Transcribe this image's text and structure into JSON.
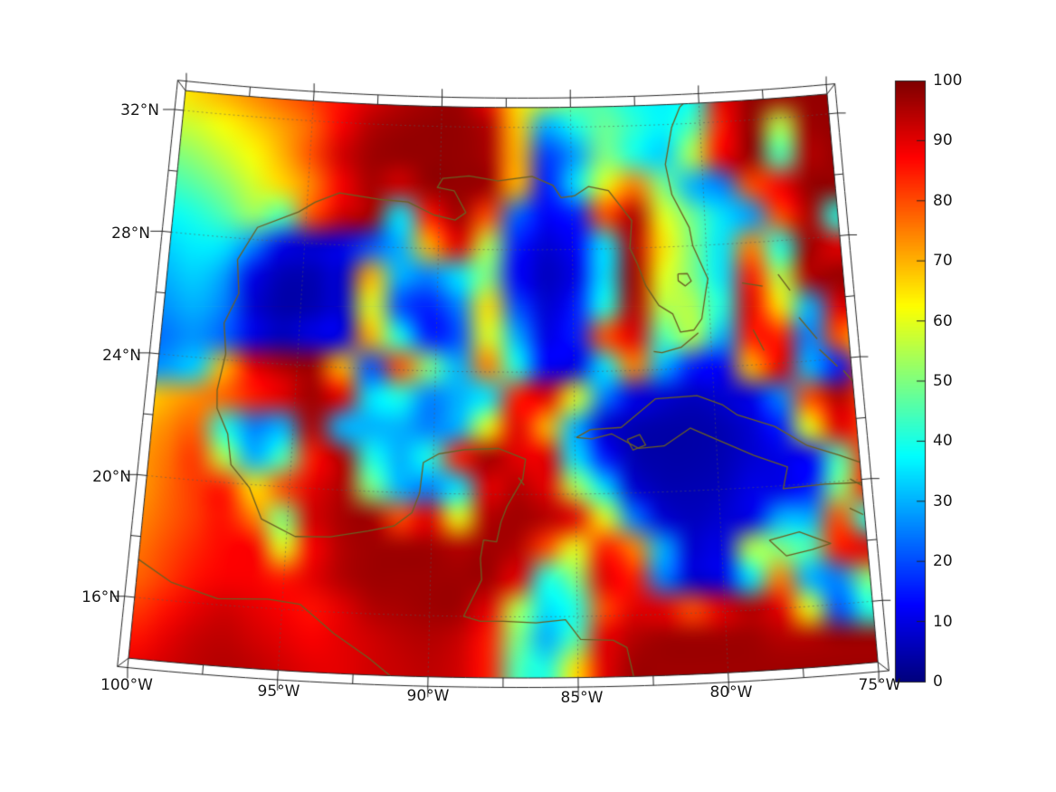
{
  "figure": {
    "background": "#ffffff",
    "description": "Geographic heatmap of Gulf of Mexico / Caribbean on a conic projection with jet colorbar 0-100"
  },
  "axes": {
    "x_tick_labels": [
      "100°W",
      "95°W",
      "90°W",
      "85°W",
      "80°W",
      "75°W"
    ],
    "y_tick_labels": [
      "32°N",
      "28°N",
      "24°N",
      "20°N",
      "16°N"
    ]
  },
  "colorbar": {
    "tick_labels": [
      "100",
      "90",
      "80",
      "70",
      "60",
      "50",
      "40",
      "30",
      "20",
      "10",
      "0"
    ],
    "min": 0,
    "max": 100,
    "colormap": "jet"
  },
  "chart_data": {
    "type": "heatmap",
    "title": "",
    "projection": "conic (Lambert-conformal-like), central meridian ~86.8W, apex above map",
    "lon_range": [
      -100,
      -75
    ],
    "lat_range": [
      14,
      32.65
    ],
    "x_ticks_deg": [
      -100,
      -95,
      -90,
      -85,
      -80,
      -75
    ],
    "y_ticks_deg": [
      32,
      28,
      24,
      20,
      16
    ],
    "gridline_lons": [
      -95,
      -90,
      -85,
      -80
    ],
    "gridline_lats": [
      16,
      20,
      24,
      28,
      32
    ],
    "colorbar_range": [
      0,
      100
    ],
    "colormap": "jet",
    "legend_position": "right",
    "grid": {
      "ncols": 26,
      "nrows": 20,
      "comment": "values 0-100 sampled on regular grid over plot area, row 0 = north/top",
      "values": [
        [
          60,
          62,
          66,
          70,
          74,
          78,
          82,
          86,
          90,
          94,
          96,
          97,
          86,
          65,
          60,
          50,
          44,
          38,
          36,
          38,
          90,
          98,
          97,
          98,
          98,
          98
        ],
        [
          55,
          56,
          58,
          62,
          67,
          72,
          78,
          88,
          95,
          97,
          98,
          98,
          95,
          68,
          30,
          40,
          48,
          42,
          37,
          45,
          85,
          98,
          55,
          97,
          98,
          98
        ],
        [
          47,
          49,
          52,
          57,
          62,
          70,
          80,
          92,
          97,
          98,
          98,
          98,
          96,
          70,
          18,
          28,
          50,
          40,
          33,
          55,
          88,
          98,
          45,
          95,
          98,
          98
        ],
        [
          41,
          43,
          46,
          51,
          58,
          66,
          75,
          88,
          96,
          92,
          98,
          98,
          97,
          70,
          15,
          35,
          60,
          75,
          50,
          30,
          25,
          80,
          88,
          98,
          98,
          98
        ],
        [
          35,
          37,
          40,
          45,
          52,
          45,
          80,
          92,
          96,
          35,
          85,
          97,
          80,
          22,
          12,
          15,
          80,
          95,
          60,
          48,
          35,
          28,
          80,
          95,
          40,
          98
        ],
        [
          31,
          33,
          36,
          35,
          25,
          10,
          8,
          10,
          20,
          30,
          70,
          90,
          55,
          15,
          8,
          12,
          35,
          95,
          65,
          50,
          35,
          75,
          40,
          97,
          90,
          98
        ],
        [
          28,
          30,
          33,
          28,
          10,
          5,
          5,
          8,
          70,
          30,
          25,
          35,
          50,
          12,
          6,
          10,
          35,
          97,
          60,
          50,
          35,
          85,
          55,
          95,
          98,
          98
        ],
        [
          25,
          27,
          30,
          25,
          8,
          4,
          5,
          8,
          60,
          20,
          15,
          25,
          65,
          20,
          8,
          15,
          40,
          95,
          55,
          55,
          40,
          90,
          65,
          30,
          90,
          95
        ],
        [
          22,
          24,
          27,
          22,
          10,
          6,
          10,
          10,
          70,
          40,
          15,
          20,
          60,
          30,
          10,
          15,
          80,
          90,
          45,
          55,
          30,
          85,
          85,
          25,
          80,
          60
        ],
        [
          25,
          28,
          33,
          70,
          90,
          95,
          97,
          70,
          20,
          80,
          50,
          30,
          75,
          40,
          12,
          10,
          35,
          75,
          30,
          15,
          12,
          70,
          90,
          30,
          15,
          80
        ],
        [
          65,
          70,
          74,
          78,
          85,
          90,
          97,
          90,
          35,
          40,
          25,
          30,
          35,
          85,
          90,
          60,
          25,
          10,
          8,
          6,
          8,
          10,
          25,
          80,
          95,
          80
        ],
        [
          70,
          74,
          78,
          40,
          25,
          30,
          95,
          30,
          30,
          30,
          25,
          30,
          60,
          90,
          70,
          30,
          8,
          5,
          4,
          4,
          5,
          8,
          15,
          60,
          90,
          80
        ],
        [
          72,
          76,
          82,
          55,
          30,
          45,
          85,
          95,
          40,
          30,
          40,
          85,
          97,
          90,
          90,
          35,
          15,
          5,
          4,
          4,
          5,
          8,
          10,
          12,
          45,
          85
        ],
        [
          72,
          77,
          82,
          85,
          65,
          80,
          90,
          95,
          50,
          30,
          25,
          35,
          90,
          95,
          90,
          55,
          35,
          8,
          5,
          5,
          6,
          10,
          10,
          15,
          50,
          85
        ],
        [
          74,
          78,
          82,
          86,
          75,
          50,
          92,
          96,
          97,
          80,
          90,
          60,
          95,
          97,
          95,
          90,
          60,
          25,
          8,
          6,
          8,
          10,
          30,
          30,
          80,
          40
        ],
        [
          76,
          80,
          84,
          87,
          88,
          60,
          88,
          95,
          97,
          97,
          97,
          95,
          97,
          95,
          80,
          60,
          85,
          75,
          30,
          8,
          10,
          55,
          50,
          45,
          85,
          90
        ],
        [
          78,
          82,
          86,
          88,
          88,
          85,
          90,
          95,
          97,
          97,
          97,
          97,
          97,
          90,
          40,
          50,
          90,
          85,
          25,
          8,
          10,
          35,
          75,
          30,
          25,
          50
        ],
        [
          82,
          86,
          90,
          92,
          90,
          88,
          86,
          90,
          95,
          96,
          97,
          97,
          90,
          55,
          35,
          40,
          80,
          90,
          90,
          80,
          90,
          95,
          90,
          60,
          20,
          40
        ],
        [
          86,
          90,
          93,
          94,
          92,
          90,
          88,
          90,
          92,
          94,
          95,
          93,
          85,
          50,
          30,
          45,
          90,
          95,
          97,
          97,
          97,
          97,
          95,
          95,
          97,
          97
        ],
        [
          90,
          92,
          94,
          95,
          94,
          92,
          90,
          90,
          92,
          93,
          94,
          92,
          85,
          45,
          40,
          65,
          90,
          97,
          97,
          97,
          97,
          97,
          97,
          97,
          97,
          97
        ]
      ]
    },
    "coastlines": [
      {
        "name": "us-gulf-and-atlantic-coast",
        "points": [
          [
            -97.6,
            24.2
          ],
          [
            -97.75,
            25.2
          ],
          [
            -97.3,
            26.2
          ],
          [
            -97.45,
            27.3
          ],
          [
            -96.8,
            28.4
          ],
          [
            -95.3,
            29.0
          ],
          [
            -94.7,
            29.35
          ],
          [
            -93.8,
            29.7
          ],
          [
            -92.3,
            29.55
          ],
          [
            -91.2,
            29.5
          ],
          [
            -90.2,
            29.1
          ],
          [
            -89.4,
            28.95
          ],
          [
            -89.0,
            29.2
          ],
          [
            -89.45,
            29.9
          ],
          [
            -90.1,
            30.0
          ],
          [
            -89.9,
            30.3
          ],
          [
            -88.9,
            30.4
          ],
          [
            -87.8,
            30.25
          ],
          [
            -86.5,
            30.4
          ],
          [
            -85.7,
            30.1
          ],
          [
            -85.4,
            29.7
          ],
          [
            -84.9,
            29.75
          ],
          [
            -84.35,
            30.05
          ],
          [
            -83.6,
            29.9
          ],
          [
            -83.0,
            29.2
          ],
          [
            -82.75,
            28.9
          ],
          [
            -82.85,
            28.0
          ],
          [
            -82.6,
            27.5
          ],
          [
            -82.3,
            26.75
          ],
          [
            -81.85,
            26.1
          ],
          [
            -81.35,
            25.8
          ],
          [
            -81.1,
            25.2
          ],
          [
            -80.6,
            25.25
          ],
          [
            -80.3,
            25.6
          ],
          [
            -80.1,
            26.5
          ],
          [
            -80.0,
            26.9
          ],
          [
            -80.5,
            28.0
          ],
          [
            -80.6,
            28.6
          ],
          [
            -81.2,
            29.7
          ],
          [
            -81.4,
            30.7
          ],
          [
            -81.1,
            31.9
          ],
          [
            -80.75,
            32.55
          ],
          [
            -80.6,
            32.66
          ]
        ]
      },
      {
        "name": "mexico-yucatan-honduras-coast",
        "points": [
          [
            -97.6,
            24.2
          ],
          [
            -97.8,
            23.0
          ],
          [
            -97.75,
            22.4
          ],
          [
            -97.3,
            21.6
          ],
          [
            -97.1,
            20.6
          ],
          [
            -96.4,
            19.9
          ],
          [
            -95.9,
            18.9
          ],
          [
            -94.7,
            18.4
          ],
          [
            -93.5,
            18.45
          ],
          [
            -92.2,
            18.7
          ],
          [
            -91.3,
            18.9
          ],
          [
            -90.7,
            19.35
          ],
          [
            -90.45,
            20.0
          ],
          [
            -90.35,
            21.0
          ],
          [
            -89.8,
            21.3
          ],
          [
            -88.9,
            21.45
          ],
          [
            -87.7,
            21.5
          ],
          [
            -86.75,
            21.15
          ],
          [
            -86.85,
            20.5
          ],
          [
            -87.4,
            19.6
          ],
          [
            -87.6,
            19.1
          ],
          [
            -87.75,
            18.45
          ],
          [
            -88.2,
            18.5
          ],
          [
            -88.3,
            17.9
          ],
          [
            -88.25,
            17.2
          ],
          [
            -88.85,
            16.0
          ],
          [
            -88.3,
            15.85
          ],
          [
            -87.5,
            15.85
          ],
          [
            -86.4,
            15.8
          ],
          [
            -85.4,
            15.9
          ],
          [
            -84.9,
            15.25
          ],
          [
            -83.8,
            15.2
          ],
          [
            -83.35,
            14.95
          ],
          [
            -83.15,
            14.0
          ]
        ]
      },
      {
        "name": "mexico-pacific-coast",
        "points": [
          [
            -100,
            17.25
          ],
          [
            -98.8,
            16.6
          ],
          [
            -97.2,
            16.2
          ],
          [
            -95.5,
            16.3
          ],
          [
            -94.4,
            16.2
          ],
          [
            -93.2,
            15.3
          ],
          [
            -92.0,
            14.55
          ],
          [
            -91.2,
            13.95
          ]
        ]
      },
      {
        "name": "cuba",
        "points": [
          [
            -84.95,
            21.85
          ],
          [
            -84.45,
            22.1
          ],
          [
            -83.35,
            22.15
          ],
          [
            -82.1,
            23.05
          ],
          [
            -80.6,
            23.1
          ],
          [
            -79.7,
            22.75
          ],
          [
            -79.2,
            22.4
          ],
          [
            -77.9,
            21.95
          ],
          [
            -76.8,
            21.25
          ],
          [
            -75.7,
            20.85
          ],
          [
            -74.25,
            20.25
          ],
          [
            -75.0,
            19.9
          ],
          [
            -76.3,
            19.95
          ],
          [
            -77.75,
            19.9
          ],
          [
            -77.55,
            20.6
          ],
          [
            -78.7,
            21.05
          ],
          [
            -79.9,
            21.6
          ],
          [
            -80.9,
            22.05
          ],
          [
            -81.85,
            21.5
          ],
          [
            -82.75,
            21.45
          ],
          [
            -83.7,
            21.95
          ],
          [
            -84.4,
            21.8
          ],
          [
            -84.95,
            21.85
          ]
        ]
      },
      {
        "name": "isla-de-la-juventud",
        "points": [
          [
            -83.15,
            21.75
          ],
          [
            -82.7,
            21.9
          ],
          [
            -82.5,
            21.55
          ],
          [
            -82.95,
            21.4
          ],
          [
            -83.15,
            21.75
          ]
        ]
      },
      {
        "name": "jamaica",
        "points": [
          [
            -78.35,
            18.25
          ],
          [
            -77.3,
            18.45
          ],
          [
            -76.25,
            18.0
          ],
          [
            -76.9,
            17.85
          ],
          [
            -77.8,
            17.7
          ],
          [
            -78.35,
            18.25
          ]
        ]
      },
      {
        "name": "lake-okeechobee",
        "points": [
          [
            -81.1,
            27.1
          ],
          [
            -80.75,
            27.1
          ],
          [
            -80.62,
            26.85
          ],
          [
            -80.85,
            26.7
          ],
          [
            -81.1,
            26.88
          ],
          [
            -81.1,
            27.1
          ]
        ]
      },
      {
        "name": "florida-keys",
        "points": [
          [
            -80.45,
            25.15
          ],
          [
            -81.1,
            24.7
          ],
          [
            -81.8,
            24.55
          ],
          [
            -82.1,
            24.6
          ]
        ]
      },
      {
        "name": "grand-bahama",
        "points": [
          [
            -78.75,
            26.7
          ],
          [
            -78.0,
            26.55
          ]
        ]
      },
      {
        "name": "abaco",
        "points": [
          [
            -77.4,
            26.9
          ],
          [
            -77.0,
            26.35
          ]
        ]
      },
      {
        "name": "andros",
        "points": [
          [
            -78.45,
            25.15
          ],
          [
            -78.1,
            24.45
          ]
        ]
      },
      {
        "name": "eleuthera",
        "points": [
          [
            -76.75,
            25.45
          ],
          [
            -76.15,
            24.7
          ]
        ]
      },
      {
        "name": "exuma",
        "points": [
          [
            -76.1,
            24.35
          ],
          [
            -75.5,
            23.75
          ]
        ]
      },
      {
        "name": "long-island-bahamas",
        "points": [
          [
            -75.3,
            23.6
          ],
          [
            -74.9,
            23.1
          ]
        ]
      },
      {
        "name": "cozumel",
        "points": [
          [
            -87.0,
            20.55
          ],
          [
            -86.8,
            20.3
          ]
        ]
      },
      {
        "name": "haiti-fragment-north",
        "points": [
          [
            -75.4,
            20.05
          ],
          [
            -75.0,
            19.8
          ]
        ]
      },
      {
        "name": "haiti-fragment-south",
        "points": [
          [
            -75.5,
            19.1
          ],
          [
            -75.05,
            18.85
          ]
        ]
      }
    ],
    "colors": {
      "coastline": "#6b5f23",
      "gridline": "#787878",
      "frame": "#222222",
      "text": "#1a1a1a",
      "jet_low": "#000080",
      "jet_high": "#800000"
    }
  }
}
